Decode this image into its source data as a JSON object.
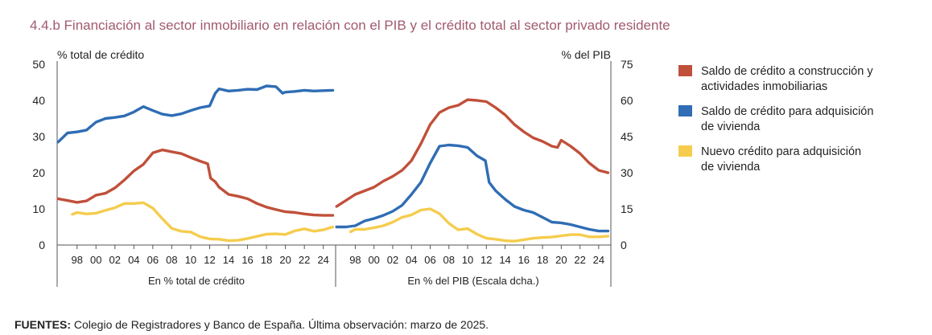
{
  "figure": {
    "title": "4.4.b  Financiación al sector inmobiliario en relación con el PIB y el crédito total al sector privado residente",
    "left_axis_title": "% total de crédito",
    "right_axis_title": "% del PIB",
    "source_bold": "FUENTES:",
    "source_text": " Colegio de Registradores y Banco de España. Última observación: marzo de 2025.",
    "colors": {
      "red": "#c0503a",
      "blue": "#2f6db4",
      "yellow": "#f5cc4d",
      "axis": "#555555"
    }
  },
  "chart_data": [
    {
      "type": "line",
      "panel_label": "En % total de crédito",
      "x_tick_labels": [
        "98",
        "00",
        "02",
        "04",
        "06",
        "08",
        "10",
        "12",
        "14",
        "16",
        "18",
        "20",
        "22",
        "24"
      ],
      "x_tick_years": [
        1998,
        2000,
        2002,
        2004,
        2006,
        2008,
        2010,
        2012,
        2014,
        2016,
        2018,
        2020,
        2022,
        2024
      ],
      "xlim": [
        1995.9,
        2025.3
      ],
      "ylim": [
        0,
        50
      ],
      "y_ticks": [
        0,
        10,
        20,
        30,
        40,
        50
      ],
      "series": [
        {
          "name": "Saldo de crédito a construcción y actividades inmobiliarias",
          "color": "#c0503a",
          "x": [
            1996,
            1997,
            1998,
            1999,
            2000,
            2001,
            2002,
            2003,
            2004,
            2005,
            2006,
            2007,
            2008,
            2009,
            2010,
            2011,
            2011.8,
            2012.1,
            2012.6,
            2013,
            2014,
            2015,
            2016,
            2017,
            2018,
            2019,
            2020,
            2021,
            2022,
            2023,
            2024,
            2025
          ],
          "y": [
            12.8,
            12.3,
            11.8,
            12.2,
            13.8,
            14.3,
            15.8,
            18,
            20.5,
            22.3,
            25.5,
            26.3,
            25.8,
            25.3,
            24.2,
            23.2,
            22.5,
            18.5,
            17.5,
            16,
            14,
            13.5,
            12.8,
            11.5,
            10.5,
            9.8,
            9.2,
            9.0,
            8.6,
            8.3,
            8.2,
            8.2
          ]
        },
        {
          "name": "Saldo de crédito para adquisición de vivienda",
          "color": "#2f6db4",
          "x": [
            1996,
            1997,
            1998,
            1999,
            2000,
            2001,
            2002,
            2003,
            2004,
            2005,
            2006,
            2007,
            2008,
            2009,
            2010,
            2011,
            2012,
            2012.6,
            2013,
            2014,
            2015,
            2016,
            2017,
            2018,
            2019,
            2019.7,
            2020,
            2021,
            2022,
            2023,
            2024,
            2025
          ],
          "y": [
            28.5,
            31,
            31.3,
            31.8,
            34,
            35,
            35.3,
            35.7,
            36.8,
            38.3,
            37.2,
            36.2,
            35.8,
            36.3,
            37.2,
            38,
            38.5,
            42,
            43.2,
            42.6,
            42.8,
            43.1,
            43,
            44,
            43.8,
            42,
            42.3,
            42.5,
            42.8,
            42.6,
            42.7,
            42.8
          ]
        },
        {
          "name": "Nuevo crédito para adquisición de vivienda",
          "color": "#f5cc4d",
          "x": [
            1997.5,
            1998,
            1999,
            2000,
            2001,
            2002,
            2003,
            2004,
            2005,
            2006,
            2007,
            2008,
            2009,
            2010,
            2011,
            2012,
            2013,
            2014,
            2015,
            2016,
            2017,
            2018,
            2019,
            2020,
            2021,
            2022,
            2023,
            2024,
            2025
          ],
          "y": [
            8.5,
            9,
            8.6,
            8.8,
            9.6,
            10.3,
            11.5,
            11.5,
            11.7,
            10.2,
            7.3,
            4.6,
            3.8,
            3.6,
            2.3,
            1.7,
            1.6,
            1.2,
            1.3,
            1.8,
            2.4,
            3.0,
            3.1,
            2.9,
            3.9,
            4.5,
            3.8,
            4.2,
            5.0
          ]
        }
      ]
    },
    {
      "type": "line",
      "panel_label": "En % del PIB (Escala dcha.)",
      "x_tick_labels": [
        "98",
        "00",
        "02",
        "04",
        "06",
        "08",
        "10",
        "12",
        "14",
        "16",
        "18",
        "20",
        "22",
        "24"
      ],
      "x_tick_years": [
        1998,
        2000,
        2002,
        2004,
        2006,
        2008,
        2010,
        2012,
        2014,
        2016,
        2018,
        2020,
        2022,
        2024
      ],
      "xlim": [
        1995.9,
        2025.3
      ],
      "ylim": [
        0,
        75
      ],
      "y_ticks": [
        0,
        15,
        30,
        45,
        60,
        75
      ],
      "series": [
        {
          "name": "Saldo de crédito a construcción y actividades inmobiliarias",
          "color": "#c0503a",
          "x": [
            1996,
            1997,
            1998,
            1999,
            2000,
            2001,
            2002,
            2003,
            2004,
            2005,
            2006,
            2007,
            2008,
            2009,
            2010,
            2011,
            2012,
            2013,
            2014,
            2015,
            2016,
            2017,
            2018,
            2019,
            2019.6,
            2020,
            2021,
            2022,
            2023,
            2024,
            2025
          ],
          "y": [
            16,
            18.5,
            21,
            22.5,
            24,
            26.5,
            28.5,
            31,
            35,
            42,
            50,
            55,
            57,
            58,
            60.3,
            60,
            59.5,
            57,
            54,
            50,
            47,
            44.5,
            43,
            41,
            40.5,
            43.5,
            41,
            38,
            34,
            31,
            30
          ]
        },
        {
          "name": "Saldo de crédito para adquisición de vivienda",
          "color": "#2f6db4",
          "x": [
            1996,
            1997,
            1998,
            1999,
            2000,
            2001,
            2002,
            2003,
            2004,
            2005,
            2006,
            2007,
            2008,
            2009,
            2010,
            2011,
            2011.9,
            2012.3,
            2013,
            2014,
            2015,
            2016,
            2017,
            2018,
            2019,
            2020,
            2021,
            2022,
            2023,
            2024,
            2025
          ],
          "y": [
            7.5,
            7.5,
            8,
            10,
            11,
            12.3,
            14,
            16.5,
            21,
            26,
            34,
            41,
            41.5,
            41.2,
            40.5,
            37,
            35,
            26,
            22.5,
            19,
            16,
            14.5,
            13.5,
            11.5,
            9.5,
            9.2,
            8.5,
            7.5,
            6.5,
            5.8,
            5.8
          ]
        },
        {
          "name": "Nuevo crédito para adquisición de vivienda",
          "color": "#f5cc4d",
          "x": [
            1997.5,
            1998,
            1999,
            2000,
            2001,
            2002,
            2003,
            2004,
            2005,
            2006,
            2007,
            2008,
            2009,
            2010,
            2011,
            2012,
            2013,
            2014,
            2015,
            2016,
            2017,
            2018,
            2019,
            2020,
            2021,
            2022,
            2023,
            2024,
            2025
          ],
          "y": [
            5.5,
            6.5,
            6.5,
            7.2,
            8,
            9.5,
            11.5,
            12.5,
            14.5,
            15,
            13,
            9,
            6.3,
            6.8,
            4.5,
            2.8,
            2.4,
            1.8,
            1.6,
            2.2,
            2.8,
            3.1,
            3.3,
            3.8,
            4.3,
            4.3,
            3.4,
            3.4,
            3.7
          ]
        }
      ]
    }
  ],
  "legend": [
    {
      "line1": "Saldo de crédito a construcción y",
      "line2": "actividades inmobiliarias",
      "color": "#c0503a"
    },
    {
      "line1": "Saldo de crédito para adquisición",
      "line2": "de vivienda",
      "color": "#2f6db4"
    },
    {
      "line1": "Nuevo crédito para adquisición",
      "line2": "de vivienda",
      "color": "#f5cc4d"
    }
  ],
  "left_axis_ticks": [
    "0",
    "10",
    "20",
    "30",
    "40",
    "50"
  ],
  "right_axis_ticks": [
    "0",
    "15",
    "30",
    "45",
    "60",
    "75"
  ]
}
